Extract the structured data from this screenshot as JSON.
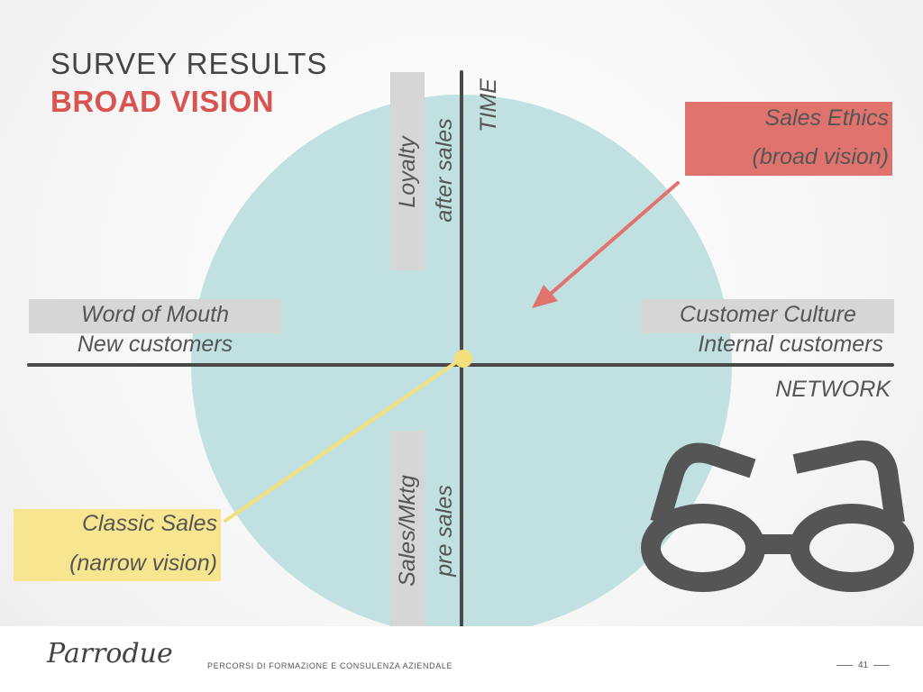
{
  "slide": {
    "title": "SURVEY RESULTS",
    "subtitle": "BROAD VISION"
  },
  "axes": {
    "vertical_label": "TIME",
    "horizontal_label": "NETWORK"
  },
  "quadrant_labels": {
    "top": {
      "boxed": "Loyalty",
      "plain": "after sales"
    },
    "bottom": {
      "boxed": "Sales/Mktg",
      "plain": "pre sales"
    },
    "left": {
      "boxed": "Word of Mouth",
      "plain": "New customers"
    },
    "right": {
      "boxed": "Customer Culture",
      "plain": "Internal customers"
    }
  },
  "callouts": {
    "sales_ethics": {
      "line1": "Sales Ethics",
      "line2": "(broad vision)",
      "color": "#e0736d"
    },
    "classic_sales": {
      "line1": "Classic Sales",
      "line2": "(narrow vision)",
      "color": "#f7e68f"
    }
  },
  "colors": {
    "circle": "#c0e0e1",
    "axis": "#4a4a4a",
    "label_box": "#d6d6d6",
    "accent_red": "#d9534f",
    "glasses": "#555555",
    "center_dot": "#f4e07a"
  },
  "icons": {
    "glasses": "glasses-icon",
    "arrow": "arrow-icon"
  },
  "footer": {
    "logo": "Parrodue",
    "tagline": "PERCORSI DI FORMAZIONE E CONSULENZA AZIENDALE",
    "page_number": "41"
  }
}
